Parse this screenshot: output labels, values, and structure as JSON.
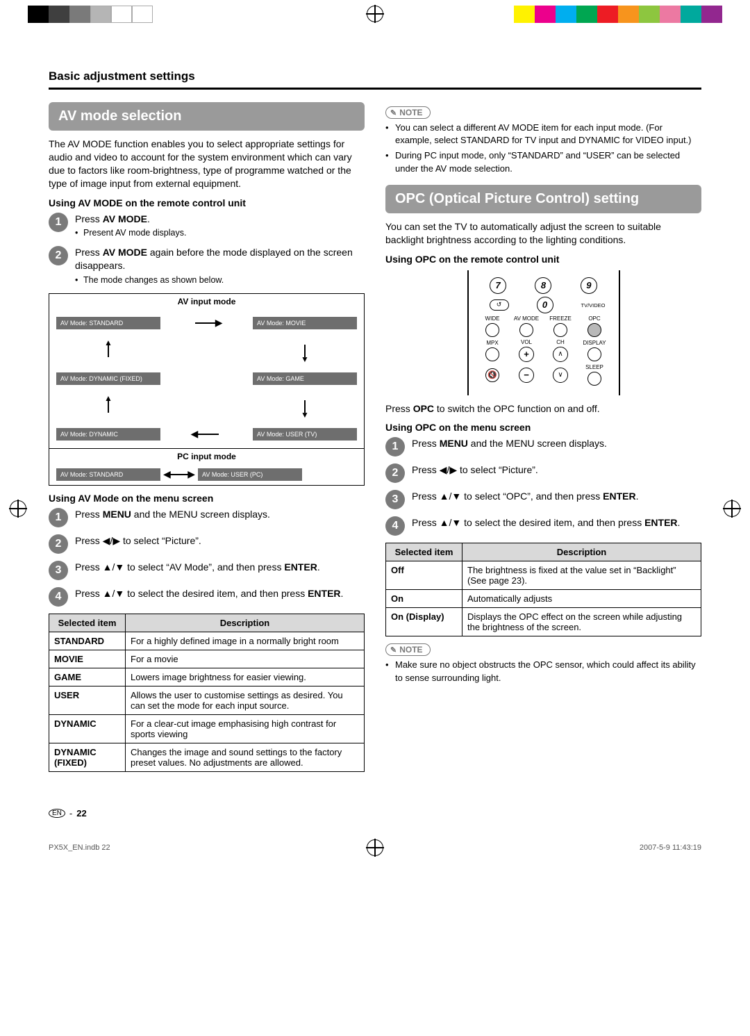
{
  "print": {
    "swatches_left": [
      "#000000",
      "#3f3f3f",
      "#7a7a7a",
      "#b5b5b5",
      "#ffffff",
      "#ffffff"
    ],
    "swatches_right": [
      "#fff200",
      "#ec008c",
      "#00aeef",
      "#00a651",
      "#ed1c24",
      "#f7941d",
      "#8dc63f",
      "#ec79a2",
      "#00a99d",
      "#92278f"
    ]
  },
  "header": {
    "section": "Basic adjustment settings"
  },
  "left": {
    "heading": "AV mode selection",
    "intro": "The AV MODE function enables you to select appropriate settings for audio and video to account for the system environment which can vary due to factors like room-brightness, type of programme watched or the type of image input from external equipment.",
    "sub1": "Using AV MODE on the remote control unit",
    "steps_a": [
      {
        "n": "1",
        "body_prefix": "Press ",
        "bold": "AV MODE",
        "body_suffix": ".",
        "bullet": "Present AV mode displays."
      },
      {
        "n": "2",
        "body_prefix": "Press ",
        "bold": "AV MODE",
        "body_suffix": " again before the mode displayed on the screen disappears.",
        "bullet": "The mode changes as shown below."
      }
    ],
    "diagram": {
      "av_title": "AV input mode",
      "avboxes": {
        "standard": "AV Mode: STANDARD",
        "movie": "AV Mode: MOVIE",
        "dynamic_fixed": "AV Mode: DYNAMIC (FIXED)",
        "game": "AV Mode: GAME",
        "dynamic": "AV Mode: DYNAMIC",
        "user_tv": "AV Mode: USER (TV)"
      },
      "pc_title": "PC input mode",
      "pcboxes": {
        "standard": "AV Mode: STANDARD",
        "user_pc": "AV Mode: USER (PC)"
      }
    },
    "sub2": "Using AV Mode on the menu screen",
    "steps_b": [
      {
        "n": "1",
        "html": "Press <b>MENU</b> and the MENU screen displays."
      },
      {
        "n": "2",
        "html": "Press ◀/▶ to select “Picture”."
      },
      {
        "n": "3",
        "html": "Press ▲/▼ to select “AV Mode”, and then press <b>ENTER</b>."
      },
      {
        "n": "4",
        "html": "Press ▲/▼ to select the desired item, and then press <b>ENTER</b>."
      }
    ],
    "tableA": {
      "head": [
        "Selected item",
        "Description"
      ],
      "rows": [
        [
          "STANDARD",
          "For a highly defined image in a normally bright room"
        ],
        [
          "MOVIE",
          "For a movie"
        ],
        [
          "GAME",
          "Lowers image brightness for easier viewing."
        ],
        [
          "USER",
          "Allows the user to customise settings as desired. You can set the mode for each input source."
        ],
        [
          "DYNAMIC",
          "For a clear-cut image emphasising high contrast for sports viewing"
        ],
        [
          "DYNAMIC (FIXED)",
          "Changes the image and sound settings to the factory preset values. No adjustments are allowed."
        ]
      ]
    }
  },
  "right": {
    "note1_label": "NOTE",
    "note1_items": [
      "You can select a different AV MODE item for each input mode. (For example, select STANDARD for TV input and DYNAMIC for VIDEO input.)",
      "During PC input mode, only “STANDARD” and “USER” can be selected under the AV mode selection."
    ],
    "heading": "OPC (Optical Picture Control) setting",
    "intro": "You can set the TV to automatically adjust the screen to suitable backlight brightness according to the lighting conditions.",
    "sub1": "Using OPC on the remote control unit",
    "remote": {
      "nums": [
        "7",
        "8",
        "9",
        "0"
      ],
      "tv_video": "TV/VIDEO",
      "row1_labels": [
        "WIDE",
        "AV MODE",
        "FREEZE",
        "OPC"
      ],
      "row2_labels": [
        "MPX",
        "VOL",
        "CH",
        "DISPLAY"
      ],
      "sleep": "SLEEP"
    },
    "opc_press": [
      "Press ",
      "OPC",
      " to switch the OPC function on and off."
    ],
    "sub2": "Using OPC on the menu screen",
    "steps": [
      {
        "n": "1",
        "html": "Press <b>MENU</b> and the MENU screen displays."
      },
      {
        "n": "2",
        "html": "Press ◀/▶ to select “Picture”."
      },
      {
        "n": "3",
        "html": "Press ▲/▼ to select “OPC”, and then press <b>ENTER</b>."
      },
      {
        "n": "4",
        "html": "Press ▲/▼ to select the desired item, and then press <b>ENTER</b>."
      }
    ],
    "tableB": {
      "head": [
        "Selected item",
        "Description"
      ],
      "rows": [
        [
          "Off",
          "The brightness is fixed at the value set in “Backlight” (See page 23)."
        ],
        [
          "On",
          "Automatically adjusts"
        ],
        [
          "On (Display)",
          "Displays the OPC effect on the screen while adjusting the brightness of the screen."
        ]
      ]
    },
    "note2_label": "NOTE",
    "note2_items": [
      "Make sure no object obstructs the OPC sensor, which could affect its ability to sense surrounding light."
    ]
  },
  "footer": {
    "pgnum_prefix": "EN",
    "pgnum": "22",
    "file": "PX5X_EN.indb   22",
    "timestamp": "2007-5-9   11:43:19"
  }
}
